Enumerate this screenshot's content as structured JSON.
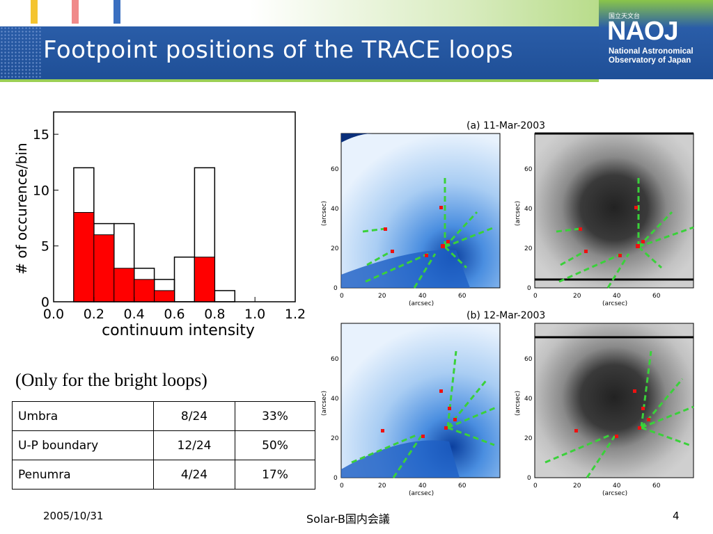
{
  "slide": {
    "title": "Footpoint positions of the TRACE loops",
    "caption": "(Only for the bright loops)",
    "footer_date": "2005/10/31",
    "footer_center": "Solar-B国内会議",
    "page_number": "4"
  },
  "logo": {
    "jp": "国立天文台",
    "main": "NAOJ",
    "line1": "National Astronomical",
    "line2": "Observatory of Japan"
  },
  "colors": {
    "title_bar": "#1f4f97",
    "accent_green": "#9bcf55",
    "bar_red": "#ff0000",
    "stripe_yellow": "#f4c430",
    "stripe_pink": "#f08a8a",
    "stripe_blue": "#3a6fc0"
  },
  "table": {
    "rows": [
      {
        "region": "Umbra",
        "count": "8/24",
        "percent": "33%"
      },
      {
        "region": "U-P boundary",
        "count": "12/24",
        "percent": "50%"
      },
      {
        "region": "Penumra",
        "count": "4/24",
        "percent": "17%"
      }
    ]
  },
  "chart_data": [
    {
      "type": "bar",
      "xlabel": "continuum intensity",
      "ylabel": "# of occurence/bin",
      "xlim": [
        0.0,
        1.2
      ],
      "ylim": [
        0,
        17
      ],
      "xticks": [
        0.0,
        0.2,
        0.4,
        0.6,
        0.8,
        1.0,
        1.2
      ],
      "yticks": [
        0,
        5,
        10,
        15
      ],
      "bin_edges": [
        0.1,
        0.2,
        0.3,
        0.4,
        0.5,
        0.6,
        0.7,
        0.8,
        0.9
      ],
      "series": [
        {
          "values": [
            12,
            7,
            7,
            3,
            2,
            4,
            12,
            1
          ],
          "style": "outline"
        },
        {
          "values": [
            8,
            6,
            3,
            2,
            1,
            0,
            4,
            0
          ],
          "style": "filled",
          "color": "#ff0000"
        }
      ]
    },
    {
      "type": "image-panels",
      "panels": [
        {
          "label": "(a) 11-Mar-2003",
          "xlabel": "(arcsec)",
          "ylabel": "(arcsec)",
          "xticks": [
            "0",
            "20",
            "40",
            "60"
          ],
          "yticks": [
            "0",
            "20",
            "40",
            "60"
          ],
          "images": [
            "trace-euv-map",
            "continuum-sunspot-map"
          ]
        },
        {
          "label": "(b) 12-Mar-2003",
          "xlabel": "(arcsec)",
          "ylabel": "(arcsec)",
          "xticks": [
            "0",
            "20",
            "40",
            "60"
          ],
          "yticks": [
            "0",
            "20",
            "40",
            "60"
          ],
          "images": [
            "trace-euv-map",
            "continuum-sunspot-map"
          ]
        }
      ]
    }
  ]
}
